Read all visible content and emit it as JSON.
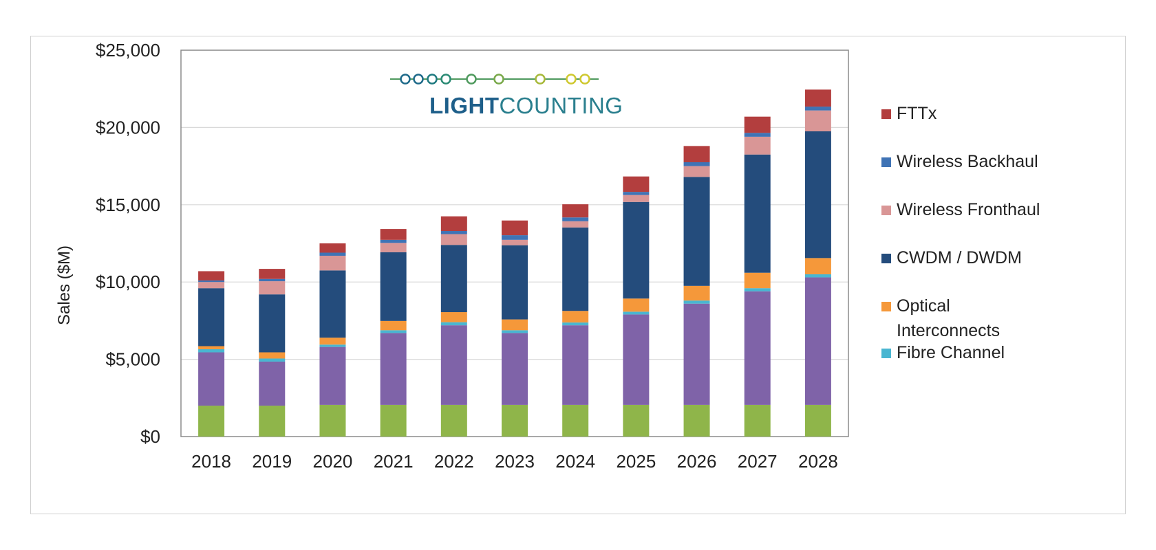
{
  "chart_data": {
    "type": "bar",
    "stacked": true,
    "title": "",
    "xlabel": "",
    "ylabel": "Sales ($M)",
    "ylim": [
      0,
      25000
    ],
    "yticks": [
      "$0",
      "$5,000",
      "$10,000",
      "$15,000",
      "$20,000",
      "$25,000"
    ],
    "ytick_values": [
      0,
      5000,
      10000,
      15000,
      20000,
      25000
    ],
    "grid": true,
    "legend_position": "right",
    "categories": [
      "2018",
      "2019",
      "2020",
      "2021",
      "2022",
      "2023",
      "2024",
      "2025",
      "2026",
      "2027",
      "2028"
    ],
    "series": [
      {
        "key": "bottom-green",
        "color": "#8fb54a",
        "values": [
          2000,
          2000,
          2050,
          2050,
          2050,
          2050,
          2050,
          2050,
          2050,
          2050,
          2050
        ]
      },
      {
        "key": "purple",
        "color": "#7f63a8",
        "values": [
          3450,
          2850,
          3750,
          4650,
          5150,
          4650,
          5150,
          5850,
          6550,
          7350,
          8250
        ]
      },
      {
        "name": "Fibre Channel",
        "color": "#49b6d1",
        "values": [
          200,
          200,
          150,
          180,
          200,
          180,
          180,
          180,
          200,
          200,
          200
        ]
      },
      {
        "name": "Optical Interconnects",
        "color": "#f5983a",
        "values": [
          200,
          400,
          450,
          600,
          650,
          700,
          750,
          850,
          950,
          1000,
          1050
        ]
      },
      {
        "name": "CWDM / DWDM",
        "color": "#244c7c",
        "values": [
          3750,
          3750,
          4350,
          4450,
          4350,
          4800,
          5400,
          6250,
          7050,
          7650,
          8200
        ]
      },
      {
        "name": "Wireless Fronthaul",
        "color": "#d99696",
        "values": [
          400,
          850,
          950,
          600,
          700,
          350,
          400,
          450,
          700,
          1150,
          1350
        ]
      },
      {
        "name": "Wireless Backhaul",
        "color": "#3f73b5",
        "values": [
          100,
          150,
          200,
          200,
          200,
          300,
          250,
          200,
          250,
          250,
          250
        ]
      },
      {
        "name": "FTTx",
        "color": "#b33e3e",
        "values": [
          600,
          650,
          600,
          700,
          950,
          950,
          850,
          1000,
          1050,
          1050,
          1100
        ]
      }
    ],
    "legend_order": [
      "FTTx",
      "Wireless Backhaul",
      "Wireless Fronthaul",
      "CWDM / DWDM",
      "Optical Interconnects",
      "Fibre Channel"
    ]
  },
  "logo": {
    "text_bold": "LIGHT",
    "text_regular": "COUNTING",
    "colors": [
      "#1e6a8a",
      "#1e6a8a",
      "#1f7a80",
      "#2a8a74",
      "#4f9a5e",
      "#79a94a",
      "#a7b93a",
      "#cfc82f"
    ]
  }
}
